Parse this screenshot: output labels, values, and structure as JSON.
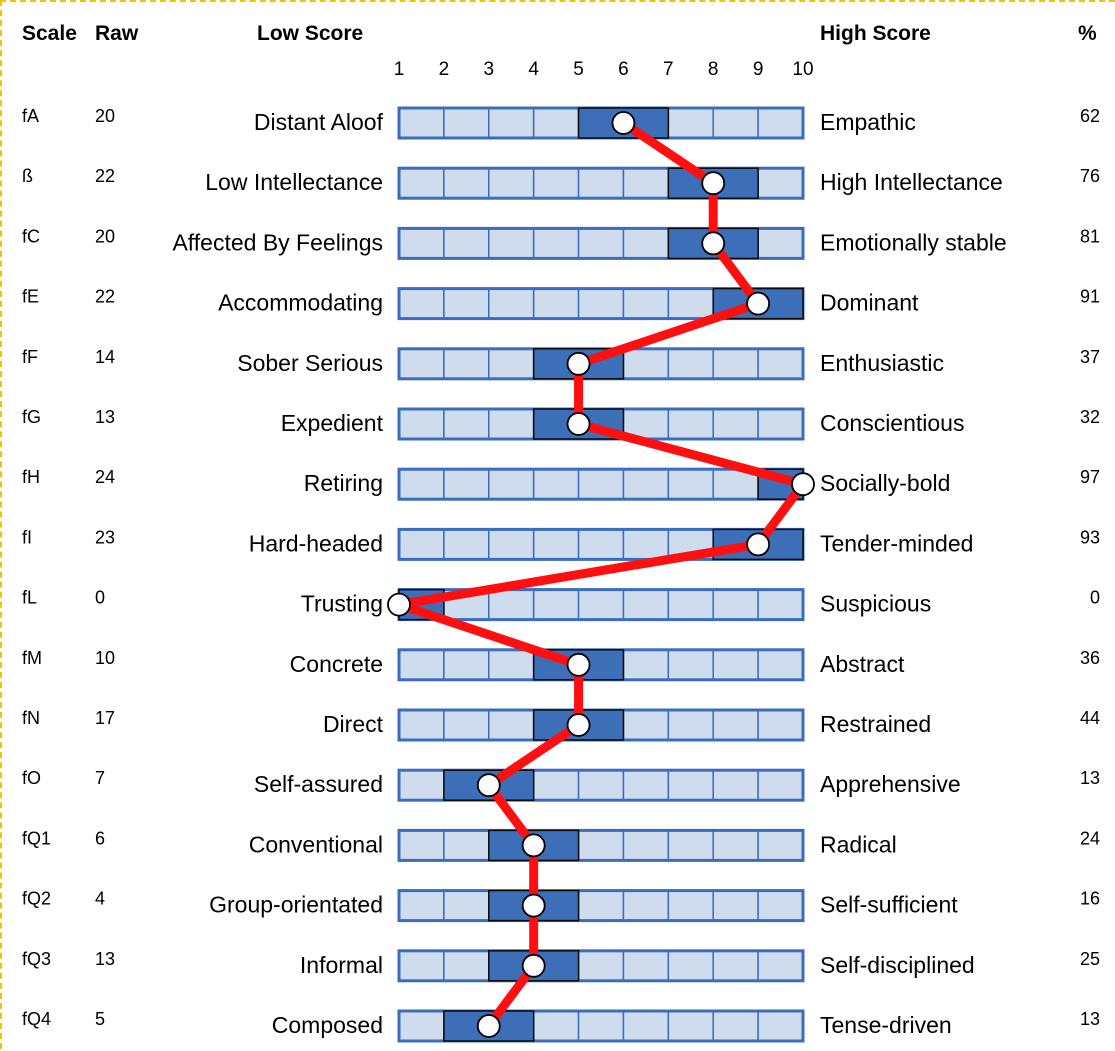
{
  "chart_data": {
    "type": "profile",
    "header": {
      "scale": "Scale",
      "raw": "Raw",
      "low": "Low Score",
      "high": "High Score",
      "percent": "%"
    },
    "ticks": [
      "1",
      "2",
      "3",
      "4",
      "5",
      "6",
      "7",
      "8",
      "9",
      "10"
    ],
    "xlim": [
      1,
      10
    ],
    "colors": {
      "cell_fill": "#cfdcee",
      "cell_border": "#3a6cc0",
      "band_fill": "#3d6eb8",
      "band_border": "#0a0a0a",
      "line": "#ff0f0f",
      "marker_fill": "#ffffff"
    },
    "rows": [
      {
        "scale": "fA",
        "raw": "20",
        "low": "Distant Aloof",
        "high": "Empathic",
        "percent": "62",
        "score": 6,
        "band": [
          5,
          7
        ]
      },
      {
        "scale": "ß",
        "raw": "22",
        "low": "Low Intellectance",
        "high": "High Intellectance",
        "percent": "76",
        "score": 8,
        "band": [
          7,
          9
        ]
      },
      {
        "scale": "fC",
        "raw": "20",
        "low": "Affected By Feelings",
        "high": "Emotionally stable",
        "percent": "81",
        "score": 8,
        "band": [
          7,
          9
        ]
      },
      {
        "scale": "fE",
        "raw": "22",
        "low": "Accommodating",
        "high": "Dominant",
        "percent": "91",
        "score": 9,
        "band": [
          8,
          10
        ]
      },
      {
        "scale": "fF",
        "raw": "14",
        "low": "Sober Serious",
        "high": "Enthusiastic",
        "percent": "37",
        "score": 5,
        "band": [
          4,
          6
        ]
      },
      {
        "scale": "fG",
        "raw": "13",
        "low": "Expedient",
        "high": "Conscientious",
        "percent": "32",
        "score": 5,
        "band": [
          4,
          6
        ]
      },
      {
        "scale": "fH",
        "raw": "24",
        "low": "Retiring",
        "high": "Socially-bold",
        "percent": "97",
        "score": 10,
        "band": [
          9,
          10
        ]
      },
      {
        "scale": "fI",
        "raw": "23",
        "low": "Hard-headed",
        "high": "Tender-minded",
        "percent": "93",
        "score": 9,
        "band": [
          8,
          10
        ]
      },
      {
        "scale": "fL",
        "raw": "0",
        "low": "Trusting",
        "high": "Suspicious",
        "percent": "0",
        "score": 1,
        "band": [
          1,
          2
        ]
      },
      {
        "scale": "fM",
        "raw": "10",
        "low": "Concrete",
        "high": "Abstract",
        "percent": "36",
        "score": 5,
        "band": [
          4,
          6
        ]
      },
      {
        "scale": "fN",
        "raw": "17",
        "low": "Direct",
        "high": "Restrained",
        "percent": "44",
        "score": 5,
        "band": [
          4,
          6
        ]
      },
      {
        "scale": "fO",
        "raw": "7",
        "low": "Self-assured",
        "high": "Apprehensive",
        "percent": "13",
        "score": 3,
        "band": [
          2,
          4
        ]
      },
      {
        "scale": "fQ1",
        "raw": "6",
        "low": "Conventional",
        "high": "Radical",
        "percent": "24",
        "score": 4,
        "band": [
          3,
          5
        ]
      },
      {
        "scale": "fQ2",
        "raw": "4",
        "low": "Group-orientated",
        "high": "Self-sufficient",
        "percent": "16",
        "score": 4,
        "band": [
          3,
          5
        ]
      },
      {
        "scale": "fQ3",
        "raw": "13",
        "low": "Informal",
        "high": "Self-disciplined",
        "percent": "25",
        "score": 4,
        "band": [
          3,
          5
        ]
      },
      {
        "scale": "fQ4",
        "raw": "5",
        "low": "Composed",
        "high": "Tense-driven",
        "percent": "13",
        "score": 3,
        "band": [
          2,
          4
        ]
      }
    ]
  }
}
